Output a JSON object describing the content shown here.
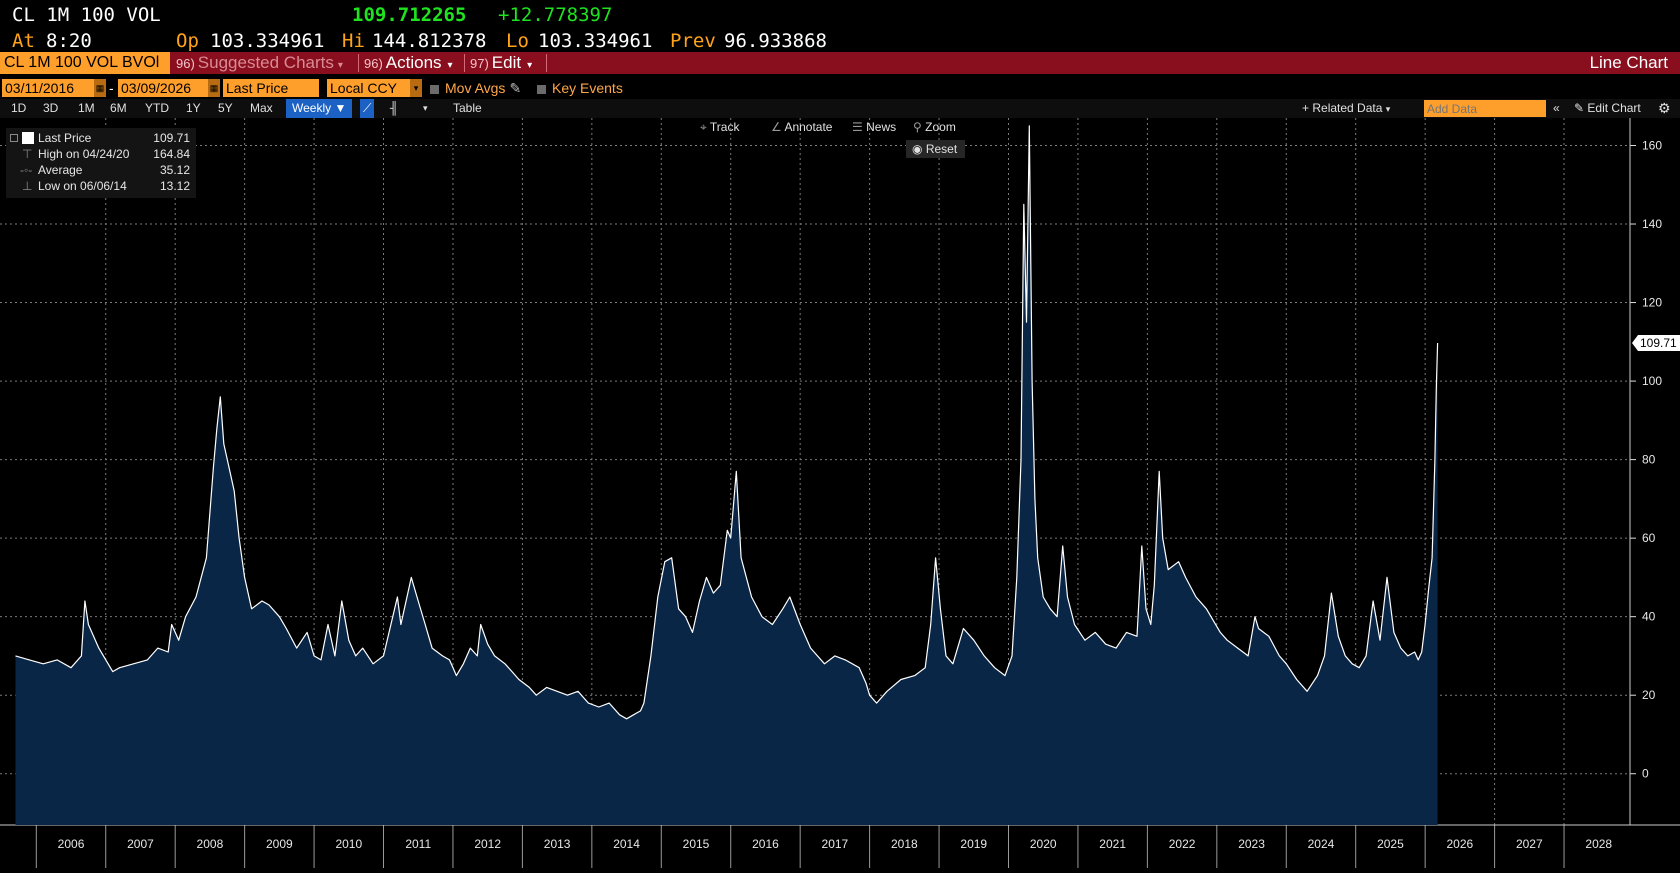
{
  "header": {
    "ticker": "CL 1M 100 VOL",
    "last": "109.712265",
    "change": "+12.778397",
    "at_label": "At",
    "at_time": "8:20",
    "op_label": "Op",
    "op_value": "103.334961",
    "hi_label": "Hi",
    "hi_value": "144.812378",
    "lo_label": "Lo",
    "lo_value": "103.334961",
    "prev_label": "Prev",
    "prev_value": "96.933868"
  },
  "toolbar": {
    "security": "CL 1M 100 VOL BVOl",
    "suggested_num": "96)",
    "suggested_label": "Suggested Charts",
    "actions_num": "96)",
    "actions_label": "Actions",
    "edit_num": "97)",
    "edit_label": "Edit",
    "chart_type": "Line Chart"
  },
  "controls": {
    "start_date": "03/11/2016",
    "date_sep": "-",
    "end_date": "03/09/2026",
    "field": "Last Price",
    "currency": "Local CCY",
    "mov_avgs": "Mov Avgs",
    "key_events": "Key Events"
  },
  "periods": [
    "1D",
    "3D",
    "1M",
    "6M",
    "YTD",
    "1Y",
    "5Y",
    "Max"
  ],
  "frequency": "Weekly",
  "table_label": "Table",
  "related_data": "Related Data",
  "add_data_placeholder": "Add Data",
  "edit_chart": "Edit Chart",
  "chart_tools": {
    "track": "Track",
    "annotate": "Annotate",
    "news": "News",
    "zoom": "Zoom",
    "reset": "Reset"
  },
  "legend": [
    {
      "name": "Last Price",
      "value": "109.71"
    },
    {
      "name": "High on 04/24/20",
      "value": "164.84"
    },
    {
      "name": "Average",
      "value": "35.12"
    },
    {
      "name": "Low on 06/06/14",
      "value": "13.12"
    }
  ],
  "colors": {
    "line": "#ffffff",
    "area": "#0a2647",
    "grid": "#7a7a7a",
    "accent_orange": "#ff9f2b",
    "bar_red": "#8a0f1e",
    "green": "#1ee31e",
    "header_orange": "#ffa31a"
  },
  "chart_data": {
    "type": "area",
    "y_ticks": [
      0,
      20,
      40,
      60,
      80,
      100,
      120,
      140,
      160
    ],
    "ylim": [
      -10,
      167
    ],
    "x_labels": [
      "2006",
      "2007",
      "2008",
      "2009",
      "2010",
      "2011",
      "2012",
      "2013",
      "2014",
      "2015",
      "2016",
      "2017",
      "2018",
      "2019",
      "2020",
      "2021",
      "2022",
      "2023",
      "2024",
      "2025",
      "2026",
      "2027",
      "2028"
    ],
    "xlim": [
      2005.65,
      2028.95
    ],
    "last_value_label": "109.71",
    "series": [
      {
        "values": [
          [
            2005.7,
            30
          ],
          [
            2005.9,
            29
          ],
          [
            2006.1,
            28
          ],
          [
            2006.3,
            29
          ],
          [
            2006.5,
            27
          ],
          [
            2006.65,
            30
          ],
          [
            2006.7,
            44
          ],
          [
            2006.75,
            38
          ],
          [
            2006.9,
            32
          ],
          [
            2007.1,
            26
          ],
          [
            2007.2,
            27
          ],
          [
            2007.4,
            28
          ],
          [
            2007.6,
            29
          ],
          [
            2007.75,
            32
          ],
          [
            2007.9,
            31
          ],
          [
            2007.95,
            38
          ],
          [
            2008.05,
            34
          ],
          [
            2008.15,
            40
          ],
          [
            2008.3,
            45
          ],
          [
            2008.45,
            55
          ],
          [
            2008.55,
            78
          ],
          [
            2008.6,
            88
          ],
          [
            2008.65,
            96
          ],
          [
            2008.7,
            84
          ],
          [
            2008.75,
            80
          ],
          [
            2008.85,
            72
          ],
          [
            2008.92,
            60
          ],
          [
            2009.0,
            50
          ],
          [
            2009.1,
            42
          ],
          [
            2009.25,
            44
          ],
          [
            2009.35,
            43
          ],
          [
            2009.5,
            40
          ],
          [
            2009.6,
            37
          ],
          [
            2009.75,
            32
          ],
          [
            2009.9,
            36
          ],
          [
            2010.0,
            30
          ],
          [
            2010.1,
            29
          ],
          [
            2010.2,
            38
          ],
          [
            2010.3,
            30
          ],
          [
            2010.4,
            44
          ],
          [
            2010.5,
            34
          ],
          [
            2010.6,
            30
          ],
          [
            2010.7,
            32
          ],
          [
            2010.85,
            28
          ],
          [
            2011.0,
            30
          ],
          [
            2011.2,
            45
          ],
          [
            2011.25,
            38
          ],
          [
            2011.4,
            50
          ],
          [
            2011.5,
            44
          ],
          [
            2011.6,
            38
          ],
          [
            2011.7,
            32
          ],
          [
            2011.85,
            30
          ],
          [
            2011.95,
            29
          ],
          [
            2012.0,
            27
          ],
          [
            2012.05,
            25
          ],
          [
            2012.15,
            28
          ],
          [
            2012.25,
            32
          ],
          [
            2012.35,
            30
          ],
          [
            2012.4,
            38
          ],
          [
            2012.5,
            33
          ],
          [
            2012.6,
            30
          ],
          [
            2012.75,
            28
          ],
          [
            2012.85,
            26
          ],
          [
            2012.95,
            24
          ],
          [
            2013.1,
            22
          ],
          [
            2013.2,
            20
          ],
          [
            2013.35,
            22
          ],
          [
            2013.5,
            21
          ],
          [
            2013.65,
            20
          ],
          [
            2013.8,
            21
          ],
          [
            2013.95,
            18
          ],
          [
            2014.1,
            17
          ],
          [
            2014.25,
            18
          ],
          [
            2014.4,
            15
          ],
          [
            2014.5,
            14
          ],
          [
            2014.6,
            15
          ],
          [
            2014.7,
            16
          ],
          [
            2014.75,
            18
          ],
          [
            2014.85,
            30
          ],
          [
            2014.95,
            45
          ],
          [
            2015.05,
            54
          ],
          [
            2015.15,
            55
          ],
          [
            2015.25,
            42
          ],
          [
            2015.35,
            40
          ],
          [
            2015.45,
            36
          ],
          [
            2015.55,
            44
          ],
          [
            2015.65,
            50
          ],
          [
            2015.75,
            46
          ],
          [
            2015.85,
            48
          ],
          [
            2015.95,
            62
          ],
          [
            2016.0,
            60
          ],
          [
            2016.08,
            77
          ],
          [
            2016.15,
            55
          ],
          [
            2016.3,
            45
          ],
          [
            2016.45,
            40
          ],
          [
            2016.6,
            38
          ],
          [
            2016.75,
            42
          ],
          [
            2016.85,
            45
          ],
          [
            2017.0,
            38
          ],
          [
            2017.15,
            32
          ],
          [
            2017.35,
            28
          ],
          [
            2017.5,
            30
          ],
          [
            2017.65,
            29
          ],
          [
            2017.85,
            27
          ],
          [
            2017.95,
            23
          ],
          [
            2018.0,
            20
          ],
          [
            2018.1,
            18
          ],
          [
            2018.25,
            21
          ],
          [
            2018.45,
            24
          ],
          [
            2018.65,
            25
          ],
          [
            2018.8,
            27
          ],
          [
            2018.88,
            38
          ],
          [
            2018.95,
            55
          ],
          [
            2019.02,
            42
          ],
          [
            2019.1,
            30
          ],
          [
            2019.2,
            28
          ],
          [
            2019.35,
            37
          ],
          [
            2019.5,
            34
          ],
          [
            2019.65,
            30
          ],
          [
            2019.8,
            27
          ],
          [
            2019.95,
            25
          ],
          [
            2020.05,
            30
          ],
          [
            2020.12,
            50
          ],
          [
            2020.18,
            80
          ],
          [
            2020.22,
            145
          ],
          [
            2020.26,
            115
          ],
          [
            2020.3,
            165
          ],
          [
            2020.34,
            100
          ],
          [
            2020.38,
            70
          ],
          [
            2020.42,
            55
          ],
          [
            2020.5,
            45
          ],
          [
            2020.6,
            42
          ],
          [
            2020.7,
            40
          ],
          [
            2020.78,
            58
          ],
          [
            2020.85,
            45
          ],
          [
            2020.95,
            38
          ],
          [
            2021.1,
            34
          ],
          [
            2021.25,
            36
          ],
          [
            2021.4,
            33
          ],
          [
            2021.55,
            32
          ],
          [
            2021.7,
            36
          ],
          [
            2021.85,
            35
          ],
          [
            2021.92,
            58
          ],
          [
            2021.98,
            42
          ],
          [
            2022.05,
            38
          ],
          [
            2022.1,
            48
          ],
          [
            2022.17,
            77
          ],
          [
            2022.22,
            60
          ],
          [
            2022.3,
            52
          ],
          [
            2022.45,
            54
          ],
          [
            2022.55,
            50
          ],
          [
            2022.7,
            45
          ],
          [
            2022.85,
            42
          ],
          [
            2022.95,
            39
          ],
          [
            2023.05,
            36
          ],
          [
            2023.15,
            34
          ],
          [
            2023.3,
            32
          ],
          [
            2023.45,
            30
          ],
          [
            2023.55,
            40
          ],
          [
            2023.6,
            37
          ],
          [
            2023.75,
            35
          ],
          [
            2023.9,
            30
          ],
          [
            2024.0,
            28
          ],
          [
            2024.15,
            24
          ],
          [
            2024.3,
            21
          ],
          [
            2024.45,
            25
          ],
          [
            2024.55,
            30
          ],
          [
            2024.65,
            46
          ],
          [
            2024.75,
            35
          ],
          [
            2024.85,
            30
          ],
          [
            2024.95,
            28
          ],
          [
            2025.05,
            27
          ],
          [
            2025.15,
            30
          ],
          [
            2025.25,
            44
          ],
          [
            2025.35,
            34
          ],
          [
            2025.45,
            50
          ],
          [
            2025.55,
            36
          ],
          [
            2025.65,
            32
          ],
          [
            2025.75,
            30
          ],
          [
            2025.85,
            31
          ],
          [
            2025.9,
            29
          ],
          [
            2025.95,
            31
          ],
          [
            2026.0,
            38
          ],
          [
            2026.05,
            47
          ],
          [
            2026.1,
            55
          ],
          [
            2026.14,
            80
          ],
          [
            2026.16,
            98
          ],
          [
            2026.18,
            109.71
          ]
        ]
      }
    ]
  }
}
